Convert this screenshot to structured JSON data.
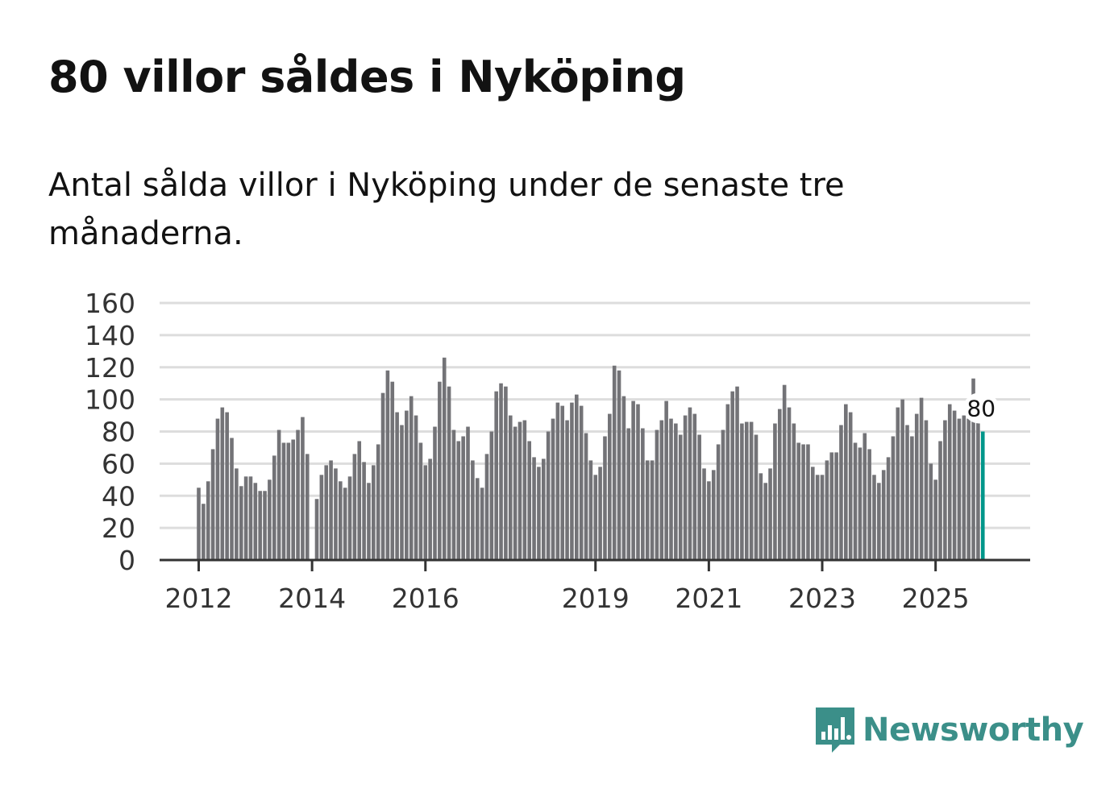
{
  "title": "80 villor såldes i Nyköping",
  "subtitle": "Antal sålda villor i Nyköping under de senaste tre månaderna.",
  "brand": {
    "name": "Newsworthy",
    "icon": "newsworthy-logo-icon",
    "color": "#3b8f89"
  },
  "colors": {
    "bar": "#737377",
    "highlight": "#00968a",
    "grid": "#dddddd",
    "axis": "#333333"
  },
  "chart_data": {
    "type": "bar",
    "title": "80 villor såldes i Nyköping",
    "xlabel": "",
    "ylabel": "",
    "ylim": [
      0,
      160
    ],
    "y_ticks": [
      0,
      20,
      40,
      60,
      80,
      100,
      120,
      140,
      160
    ],
    "x_ticks": [
      {
        "label": "2012",
        "index": 0
      },
      {
        "label": "2014",
        "index": 24
      },
      {
        "label": "2016",
        "index": 48
      },
      {
        "label": "2019",
        "index": 84
      },
      {
        "label": "2021",
        "index": 108
      },
      {
        "label": "2023",
        "index": 132
      },
      {
        "label": "2025",
        "index": 156
      }
    ],
    "series_start": "2012-01",
    "highlight_label": "80",
    "values": [
      45,
      35,
      49,
      69,
      88,
      95,
      92,
      76,
      57,
      46,
      52,
      52,
      48,
      43,
      43,
      50,
      65,
      81,
      73,
      73,
      75,
      81,
      89,
      66,
      0,
      38,
      53,
      59,
      62,
      57,
      49,
      45,
      52,
      66,
      74,
      61,
      48,
      59,
      72,
      104,
      118,
      111,
      92,
      84,
      93,
      102,
      90,
      73,
      59,
      63,
      83,
      111,
      126,
      108,
      81,
      74,
      77,
      83,
      62,
      51,
      45,
      66,
      80,
      105,
      110,
      108,
      90,
      83,
      86,
      87,
      74,
      64,
      58,
      63,
      80,
      88,
      98,
      96,
      87,
      98,
      103,
      96,
      79,
      62,
      53,
      58,
      77,
      91,
      121,
      118,
      102,
      82,
      99,
      97,
      82,
      62,
      62,
      81,
      87,
      99,
      88,
      85,
      78,
      90,
      95,
      91,
      78,
      57,
      49,
      56,
      72,
      81,
      97,
      105,
      108,
      85,
      86,
      86,
      78,
      54,
      48,
      57,
      85,
      94,
      109,
      95,
      85,
      73,
      72,
      72,
      58,
      53,
      53,
      62,
      67,
      67,
      84,
      97,
      92,
      73,
      70,
      79,
      69,
      53,
      48,
      56,
      64,
      77,
      95,
      100,
      84,
      77,
      91,
      101,
      87,
      60,
      50,
      74,
      87,
      97,
      93,
      88,
      90,
      88,
      113,
      87,
      80
    ]
  }
}
